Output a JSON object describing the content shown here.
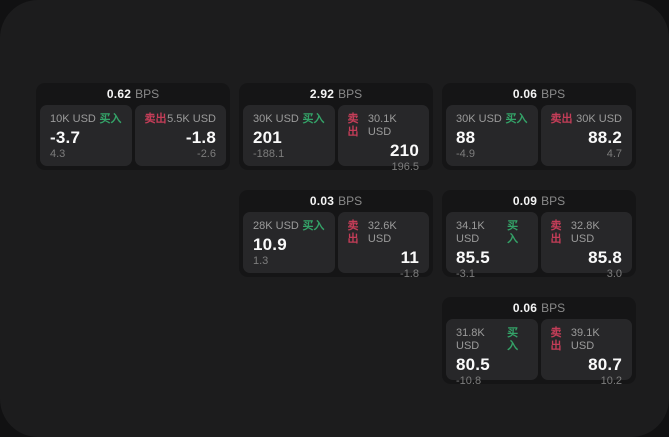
{
  "labels": {
    "buy": "买入",
    "sell": "卖出",
    "bps_unit": "BPS"
  },
  "colors": {
    "buy_green": "#34a368",
    "sell_red": "#c43d58",
    "panel_bg": "#1c1c1d",
    "card_bg": "#151516",
    "subpanel_bg": "#272729"
  },
  "cards": [
    {
      "col": 1,
      "row": 1,
      "bps": "0.62",
      "buy": {
        "amount": "10K USD",
        "price": "-3.7",
        "delta": "4.3"
      },
      "sell": {
        "amount": "5.5K USD",
        "price": "-1.8",
        "delta": "-2.6"
      }
    },
    {
      "col": 2,
      "row": 1,
      "bps": "2.92",
      "buy": {
        "amount": "30K USD",
        "price": "201",
        "delta": "-188.1"
      },
      "sell": {
        "amount": "30.1K USD",
        "price": "210",
        "delta": "196.5"
      }
    },
    {
      "col": 3,
      "row": 1,
      "bps": "0.06",
      "buy": {
        "amount": "30K USD",
        "price": "88",
        "delta": "-4.9"
      },
      "sell": {
        "amount": "30K USD",
        "price": "88.2",
        "delta": "4.7"
      }
    },
    {
      "col": 2,
      "row": 2,
      "bps": "0.03",
      "buy": {
        "amount": "28K USD",
        "price": "10.9",
        "delta": "1.3"
      },
      "sell": {
        "amount": "32.6K USD",
        "price": "11",
        "delta": "-1.8"
      }
    },
    {
      "col": 3,
      "row": 2,
      "bps": "0.09",
      "buy": {
        "amount": "34.1K USD",
        "price": "85.5",
        "delta": "-3.1"
      },
      "sell": {
        "amount": "32.8K USD",
        "price": "85.8",
        "delta": "3.0"
      }
    },
    {
      "col": 3,
      "row": 3,
      "bps": "0.06",
      "buy": {
        "amount": "31.8K USD",
        "price": "80.5",
        "delta": "-10.8"
      },
      "sell": {
        "amount": "39.1K USD",
        "price": "80.7",
        "delta": "10.2"
      }
    }
  ]
}
